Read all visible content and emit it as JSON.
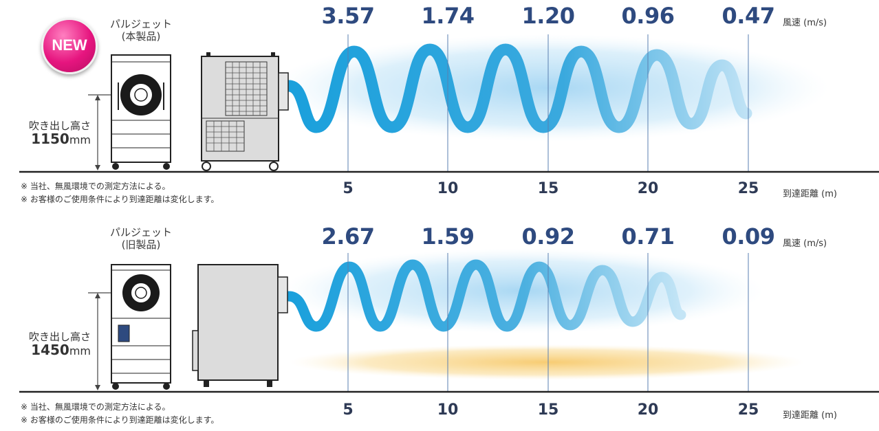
{
  "colors": {
    "speed": "#2e4a7f",
    "air": "#1aa7e0",
    "badge": "#e6157f",
    "heat": "#f6c35a"
  },
  "new_product": {
    "badge": "NEW",
    "name_line1": "パルジェット",
    "name_line2": "(本製品)",
    "height_label": "吹き出し高さ",
    "height_value": "1150",
    "height_unit": "mm",
    "speeds": [
      "3.57",
      "1.74",
      "1.20",
      "0.96",
      "0.47"
    ],
    "speed_unit": "風速 (m/s)",
    "distances": [
      "5",
      "10",
      "15",
      "20",
      "25"
    ],
    "distance_unit": "到達距離 (m)",
    "notes": [
      "※ 当社、無風環境での測定方法による。",
      "※ お客様のご使用条件により到達距離は変化します。"
    ]
  },
  "old_product": {
    "name_line1": "パルジェット",
    "name_line2": "(旧製品)",
    "height_label": "吹き出し高さ",
    "height_value": "1450",
    "height_unit": "mm",
    "speeds": [
      "2.67",
      "1.59",
      "0.92",
      "0.71",
      "0.09"
    ],
    "speed_unit": "風速 (m/s)",
    "distances": [
      "5",
      "10",
      "15",
      "20",
      "25"
    ],
    "distance_unit": "到達距離 (m)",
    "notes": [
      "※ 当社、無風環境での測定方法による。",
      "※ お客様のご使用条件により到達距離は変化します。"
    ]
  }
}
